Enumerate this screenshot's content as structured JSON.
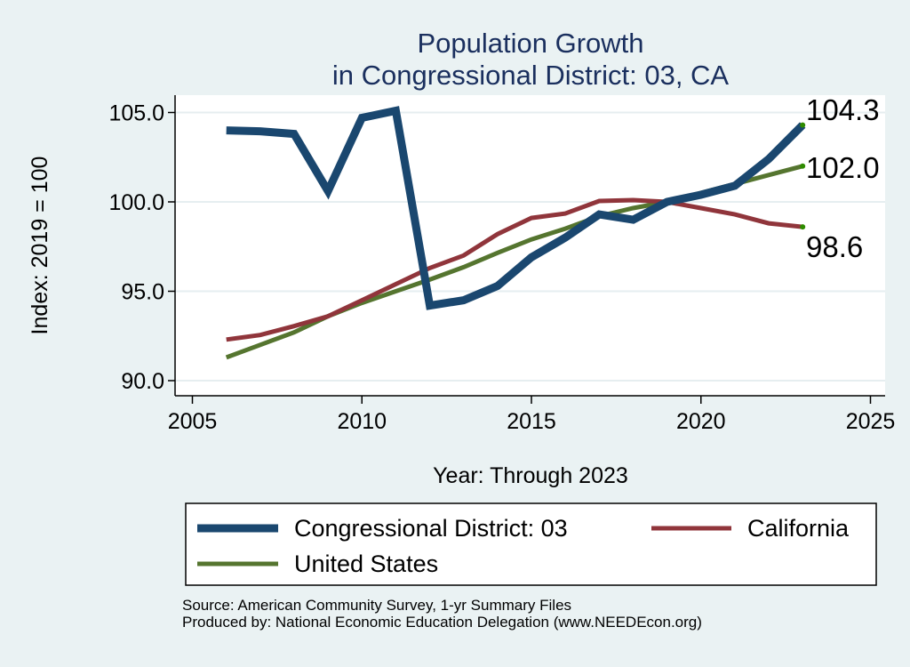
{
  "chart_data": {
    "type": "line",
    "title": [
      "Population Growth",
      "in Congressional District: 03, CA"
    ],
    "xlabel": "Year: Through 2023",
    "ylabel": "Index: 2019 = 100",
    "xlim": [
      2005,
      2025
    ],
    "ylim": [
      90,
      105
    ],
    "xticks": [
      2005,
      2010,
      2015,
      2020,
      2025
    ],
    "yticks": [
      90.0,
      95.0,
      100.0,
      105.0
    ],
    "ytick_labels": [
      "90.0",
      "95.0",
      "100.0",
      "105.0"
    ],
    "x": [
      2006,
      2007,
      2008,
      2009,
      2010,
      2011,
      2012,
      2013,
      2014,
      2015,
      2016,
      2017,
      2018,
      2019,
      2020,
      2021,
      2022,
      2023
    ],
    "series": [
      {
        "name": "Congressional District: 03",
        "color": "#1a476f",
        "values": [
          104.0,
          103.95,
          103.8,
          100.6,
          104.7,
          105.1,
          94.2,
          94.5,
          95.3,
          96.9,
          98.0,
          99.3,
          99.0,
          100.0,
          100.4,
          100.9,
          102.4,
          104.3
        ]
      },
      {
        "name": "California",
        "color": "#90353b",
        "values": [
          92.3,
          92.55,
          93.05,
          93.6,
          94.5,
          95.4,
          96.3,
          97.0,
          98.2,
          99.1,
          99.35,
          100.05,
          100.1,
          100.0,
          99.65,
          99.3,
          98.8,
          98.6
        ]
      },
      {
        "name": "United States",
        "color": "#55752f",
        "values": [
          91.3,
          92.0,
          92.7,
          93.6,
          94.35,
          95.0,
          95.65,
          96.35,
          97.15,
          97.9,
          98.5,
          99.2,
          99.65,
          100.0,
          100.5,
          101.0,
          101.5,
          102.0
        ]
      }
    ],
    "end_labels": [
      "104.3",
      "102.0",
      "98.6"
    ],
    "end_dot_color": "#2e8b00",
    "legend": {
      "position": "bottom",
      "entries": [
        "Congressional District: 03",
        "California",
        "United States"
      ]
    },
    "grid": true,
    "source_lines": [
      "Source: American Community Survey, 1-yr Summary Files",
      "Produced by: National Economic Education Delegation (www.NEEDEcon.org)"
    ]
  }
}
